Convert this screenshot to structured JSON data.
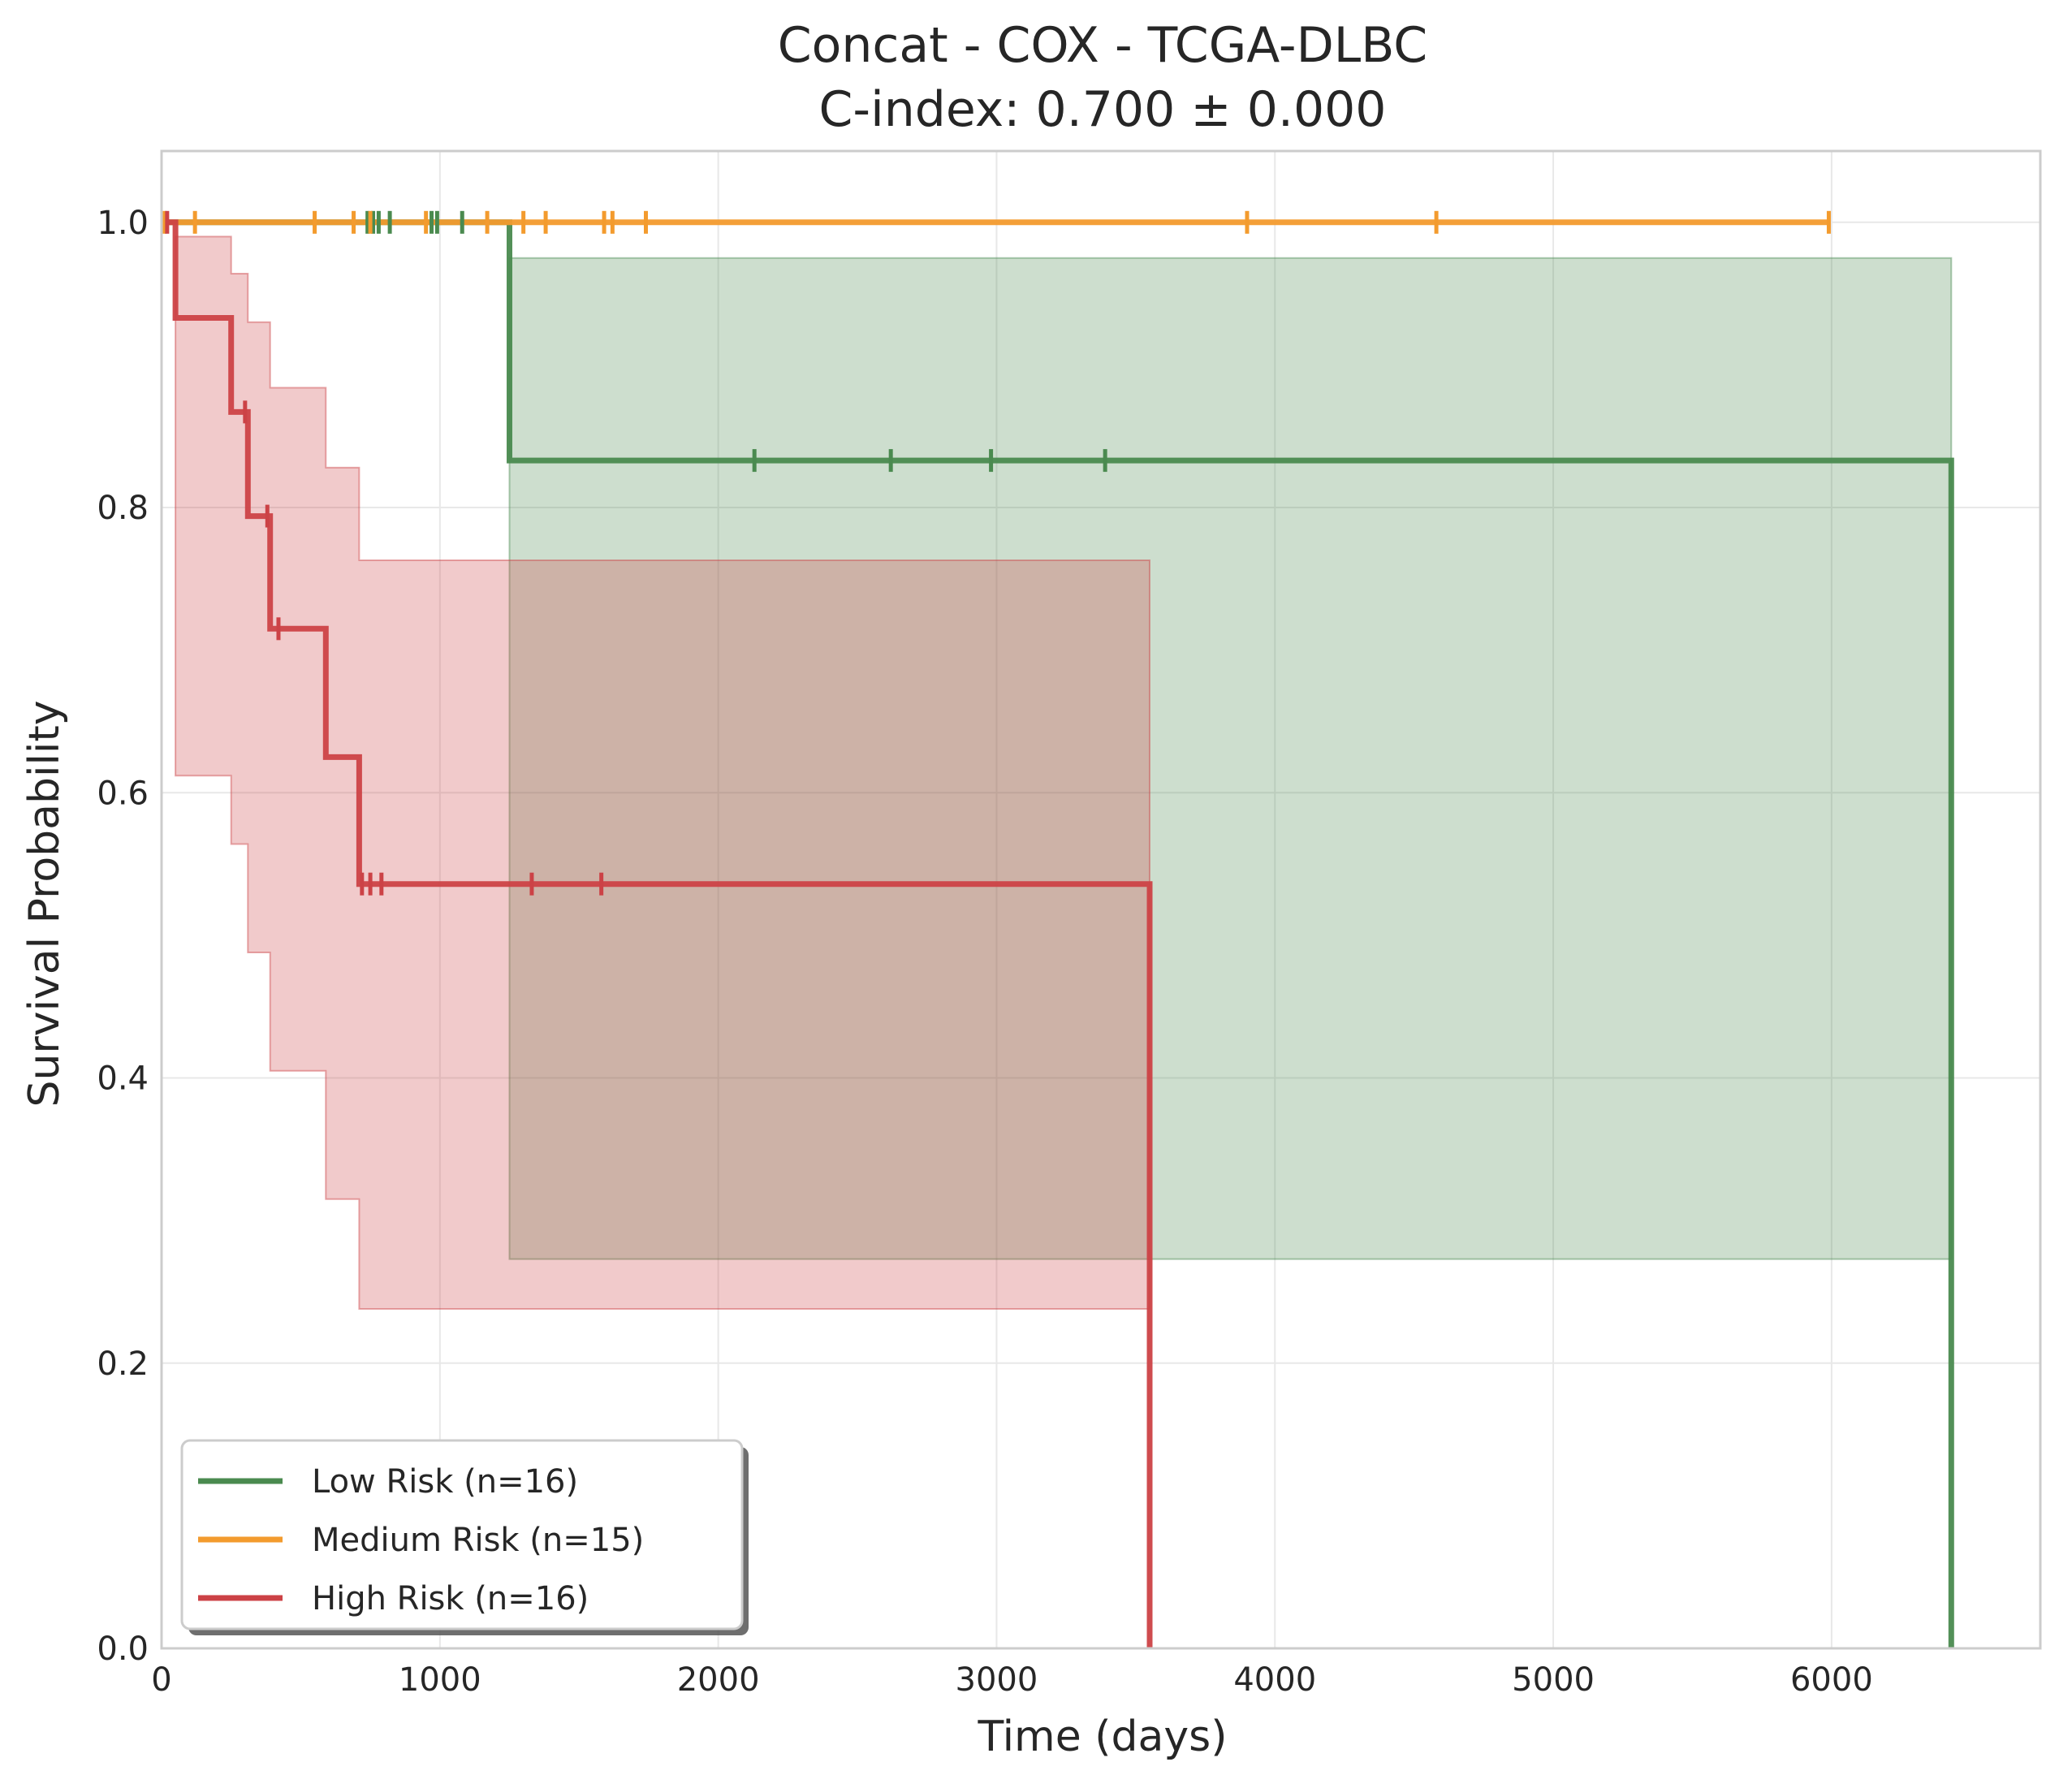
{
  "chart_data": {
    "type": "line",
    "title_line1": "Concat - COX - TCGA-DLBC",
    "title_line2": "C-index: 0.700 ± 0.000",
    "xlabel": "Time (days)",
    "ylabel": "Survival Probability",
    "xlim": [
      0,
      6750
    ],
    "ylim": [
      0,
      1.05
    ],
    "xticks": [
      0,
      1000,
      2000,
      3000,
      4000,
      5000,
      6000
    ],
    "xtick_labels": [
      "0",
      "1000",
      "2000",
      "3000",
      "4000",
      "5000",
      "6000"
    ],
    "yticks": [
      0.0,
      0.2,
      0.4,
      0.6,
      0.8,
      1.0
    ],
    "ytick_labels": [
      "0.0",
      "0.2",
      "0.4",
      "0.6",
      "0.8",
      "1.0"
    ],
    "grid": true,
    "legend_position": "lower-left",
    "series": [
      {
        "name": "Low Risk (n=16)",
        "color": "#4a8a4f",
        "steps": [
          [
            0,
            1.0
          ],
          [
            1250,
            1.0
          ],
          [
            1250,
            0.833
          ],
          [
            6430,
            0.833
          ],
          [
            6430,
            0.0
          ]
        ],
        "ci": [
          [
            1250,
            0.273,
            0.975
          ],
          [
            6430,
            0.273,
            0.975
          ]
        ],
        "censors": [
          [
            740,
            1.0
          ],
          [
            760,
            1.0
          ],
          [
            780,
            1.0
          ],
          [
            820,
            1.0
          ],
          [
            970,
            1.0
          ],
          [
            990,
            1.0
          ],
          [
            1080,
            1.0
          ],
          [
            2130,
            0.833
          ],
          [
            2620,
            0.833
          ],
          [
            2980,
            0.833
          ],
          [
            3390,
            0.833
          ]
        ]
      },
      {
        "name": "Medium Risk (n=15)",
        "color": "#f39b2e",
        "steps": [
          [
            0,
            1.0
          ],
          [
            5990,
            1.0
          ]
        ],
        "ci": [],
        "censors": [
          [
            10,
            1.0
          ],
          [
            120,
            1.0
          ],
          [
            550,
            1.0
          ],
          [
            690,
            1.0
          ],
          [
            750,
            1.0
          ],
          [
            950,
            1.0
          ],
          [
            1170,
            1.0
          ],
          [
            1300,
            1.0
          ],
          [
            1380,
            1.0
          ],
          [
            1590,
            1.0
          ],
          [
            1620,
            1.0
          ],
          [
            1740,
            1.0
          ],
          [
            3900,
            1.0
          ],
          [
            4580,
            1.0
          ],
          [
            5990,
            1.0
          ]
        ]
      },
      {
        "name": "High Risk (n=16)",
        "color": "#cc4246",
        "steps": [
          [
            0,
            1.0
          ],
          [
            50,
            1.0
          ],
          [
            50,
            0.933
          ],
          [
            250,
            0.933
          ],
          [
            250,
            0.867
          ],
          [
            310,
            0.867
          ],
          [
            310,
            0.794
          ],
          [
            390,
            0.794
          ],
          [
            390,
            0.715
          ],
          [
            590,
            0.715
          ],
          [
            590,
            0.625
          ],
          [
            710,
            0.625
          ],
          [
            710,
            0.536
          ],
          [
            3550,
            0.536
          ],
          [
            3550,
            0.0
          ]
        ],
        "ci": [
          [
            50,
            0.612,
            0.99
          ],
          [
            250,
            0.564,
            0.964
          ],
          [
            310,
            0.488,
            0.93
          ],
          [
            390,
            0.405,
            0.884
          ],
          [
            590,
            0.315,
            0.828
          ],
          [
            710,
            0.238,
            0.763
          ],
          [
            3550,
            0.238,
            0.763
          ]
        ],
        "censors": [
          [
            20,
            1.0
          ],
          [
            300,
            0.867
          ],
          [
            380,
            0.794
          ],
          [
            420,
            0.715
          ],
          [
            720,
            0.536
          ],
          [
            750,
            0.536
          ],
          [
            790,
            0.536
          ],
          [
            1330,
            0.536
          ],
          [
            1580,
            0.536
          ]
        ]
      }
    ]
  }
}
